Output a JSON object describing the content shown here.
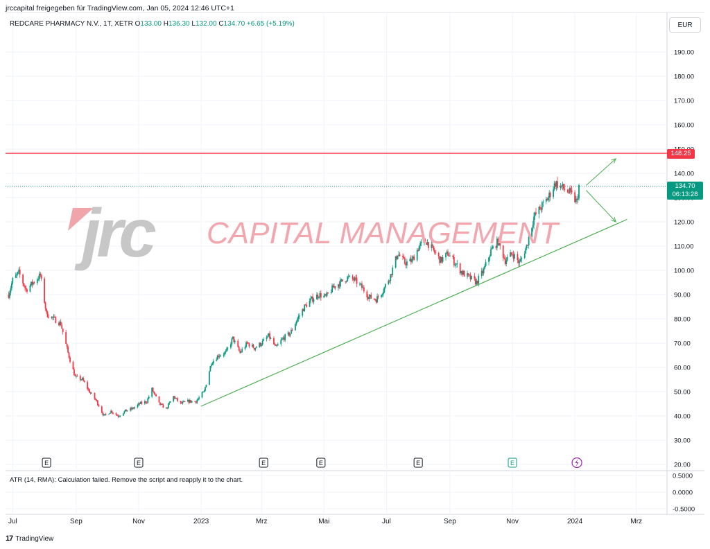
{
  "header": {
    "publish_line": "jrccapital freigegeben für TradingView.com, Jan 05, 2024 12:46 UTC+1"
  },
  "legend": {
    "symbol": "REDCARE PHARMACY N.V., 1T, XETR",
    "o_label": "O",
    "o": "133.00",
    "h_label": "H",
    "h": "136.30",
    "l_label": "L",
    "l": "132.00",
    "c_label": "C",
    "c": "134.70",
    "change": "+6.65 (+5.19%)"
  },
  "currency": "EUR",
  "price_badge": {
    "price": "134.70",
    "countdown": "06:13:28"
  },
  "level_badge": "148.25",
  "indicator": {
    "message": "ATR (14, RMA): Calculation failed. Remove the script and reapply it to the chart."
  },
  "footer": {
    "brand": "TradingView",
    "logo_glyph": "17"
  },
  "watermark": {
    "logo": "jrc",
    "text": "CAPITAL MANAGEMENT"
  },
  "colors": {
    "up": "#089981",
    "down": "#f23645",
    "trendline": "#4caf50",
    "level": "#f23645",
    "accent_purple": "#9c27b0"
  },
  "chart_data": {
    "type": "candlestick",
    "ylim": [
      20,
      200
    ],
    "yticks": [
      "190.00",
      "180.00",
      "170.00",
      "160.00",
      "150.00",
      "140.00",
      "130.00",
      "120.00",
      "110.00",
      "100.00",
      "90.00",
      "80.00",
      "70.00",
      "60.00",
      "50.00",
      "40.00",
      "30.00",
      "20.00"
    ],
    "x_labels": [
      {
        "label": "Jul",
        "date": "2022-07-01"
      },
      {
        "label": "Sep",
        "date": "2022-09-01"
      },
      {
        "label": "Nov",
        "date": "2022-11-01"
      },
      {
        "label": "2023",
        "date": "2023-01-01"
      },
      {
        "label": "Mrz",
        "date": "2023-03-01"
      },
      {
        "label": "Mai",
        "date": "2023-05-01"
      },
      {
        "label": "Jul",
        "date": "2023-07-01"
      },
      {
        "label": "Sep",
        "date": "2023-09-01"
      },
      {
        "label": "Nov",
        "date": "2023-11-01"
      },
      {
        "label": "2024",
        "date": "2024-01-01"
      },
      {
        "label": "Mrz",
        "date": "2024-03-01"
      }
    ],
    "price_path": [
      [
        "2022-06-27",
        90
      ],
      [
        "2022-07-01",
        96
      ],
      [
        "2022-07-07",
        99
      ],
      [
        "2022-07-14",
        92
      ],
      [
        "2022-07-21",
        95
      ],
      [
        "2022-07-28",
        98
      ],
      [
        "2022-08-03",
        82
      ],
      [
        "2022-08-10",
        80
      ],
      [
        "2022-08-17",
        78
      ],
      [
        "2022-08-24",
        66
      ],
      [
        "2022-08-31",
        56
      ],
      [
        "2022-09-07",
        55
      ],
      [
        "2022-09-14",
        50
      ],
      [
        "2022-09-21",
        46
      ],
      [
        "2022-09-28",
        40
      ],
      [
        "2022-10-05",
        42
      ],
      [
        "2022-10-12",
        40
      ],
      [
        "2022-10-19",
        42
      ],
      [
        "2022-10-26",
        43
      ],
      [
        "2022-11-02",
        45
      ],
      [
        "2022-11-09",
        46
      ],
      [
        "2022-11-14",
        51
      ],
      [
        "2022-11-21",
        45
      ],
      [
        "2022-11-28",
        43
      ],
      [
        "2022-12-05",
        48
      ],
      [
        "2022-12-12",
        45
      ],
      [
        "2022-12-19",
        46
      ],
      [
        "2022-12-27",
        46
      ],
      [
        "2023-01-04",
        50
      ],
      [
        "2023-01-11",
        62
      ],
      [
        "2023-01-18",
        65
      ],
      [
        "2023-01-25",
        66
      ],
      [
        "2023-02-01",
        72
      ],
      [
        "2023-02-08",
        66
      ],
      [
        "2023-02-15",
        70
      ],
      [
        "2023-02-22",
        68
      ],
      [
        "2023-03-01",
        70
      ],
      [
        "2023-03-08",
        73
      ],
      [
        "2023-03-15",
        68
      ],
      [
        "2023-03-22",
        72
      ],
      [
        "2023-03-29",
        74
      ],
      [
        "2023-04-05",
        80
      ],
      [
        "2023-04-12",
        85
      ],
      [
        "2023-04-19",
        88
      ],
      [
        "2023-04-26",
        90
      ],
      [
        "2023-05-03",
        89
      ],
      [
        "2023-05-10",
        93
      ],
      [
        "2023-05-17",
        95
      ],
      [
        "2023-05-24",
        97
      ],
      [
        "2023-05-31",
        96
      ],
      [
        "2023-06-07",
        93
      ],
      [
        "2023-06-14",
        89
      ],
      [
        "2023-06-21",
        88
      ],
      [
        "2023-06-28",
        92
      ],
      [
        "2023-07-05",
        98
      ],
      [
        "2023-07-12",
        107
      ],
      [
        "2023-07-19",
        103
      ],
      [
        "2023-07-26",
        104
      ],
      [
        "2023-08-02",
        110
      ],
      [
        "2023-08-09",
        112
      ],
      [
        "2023-08-16",
        108
      ],
      [
        "2023-08-23",
        104
      ],
      [
        "2023-08-30",
        107
      ],
      [
        "2023-09-06",
        103
      ],
      [
        "2023-09-13",
        99
      ],
      [
        "2023-09-20",
        97
      ],
      [
        "2023-09-27",
        95
      ],
      [
        "2023-10-04",
        100
      ],
      [
        "2023-10-11",
        108
      ],
      [
        "2023-10-18",
        112
      ],
      [
        "2023-10-25",
        104
      ],
      [
        "2023-11-01",
        107
      ],
      [
        "2023-11-08",
        103
      ],
      [
        "2023-11-15",
        110
      ],
      [
        "2023-11-22",
        122
      ],
      [
        "2023-11-29",
        126
      ],
      [
        "2023-12-06",
        130
      ],
      [
        "2023-12-13",
        136
      ],
      [
        "2023-12-20",
        134
      ],
      [
        "2023-12-27",
        132
      ],
      [
        "2024-01-03",
        128
      ],
      [
        "2024-01-05",
        134.7
      ]
    ],
    "horizontal_level": 148.25,
    "last_price": 134.7,
    "trendline": [
      [
        "2023-01-01",
        44
      ],
      [
        "2024-02-21",
        121
      ]
    ],
    "projection_arrows": [
      {
        "from": [
          "2024-01-12",
          135
        ],
        "to": [
          "2024-02-10",
          146
        ]
      },
      {
        "from": [
          "2024-01-12",
          133
        ],
        "to": [
          "2024-02-10",
          120
        ]
      }
    ],
    "earnings_markers": [
      "2022-08-03",
      "2022-11-01",
      "2023-03-03",
      "2023-04-28",
      "2023-08-01",
      "2023-11-01"
    ],
    "event_markers": [
      {
        "date": "2024-01-03",
        "type": "flash"
      }
    ],
    "atr_yticks": [
      "0.5000",
      "0.0000",
      "-0.5000"
    ]
  }
}
